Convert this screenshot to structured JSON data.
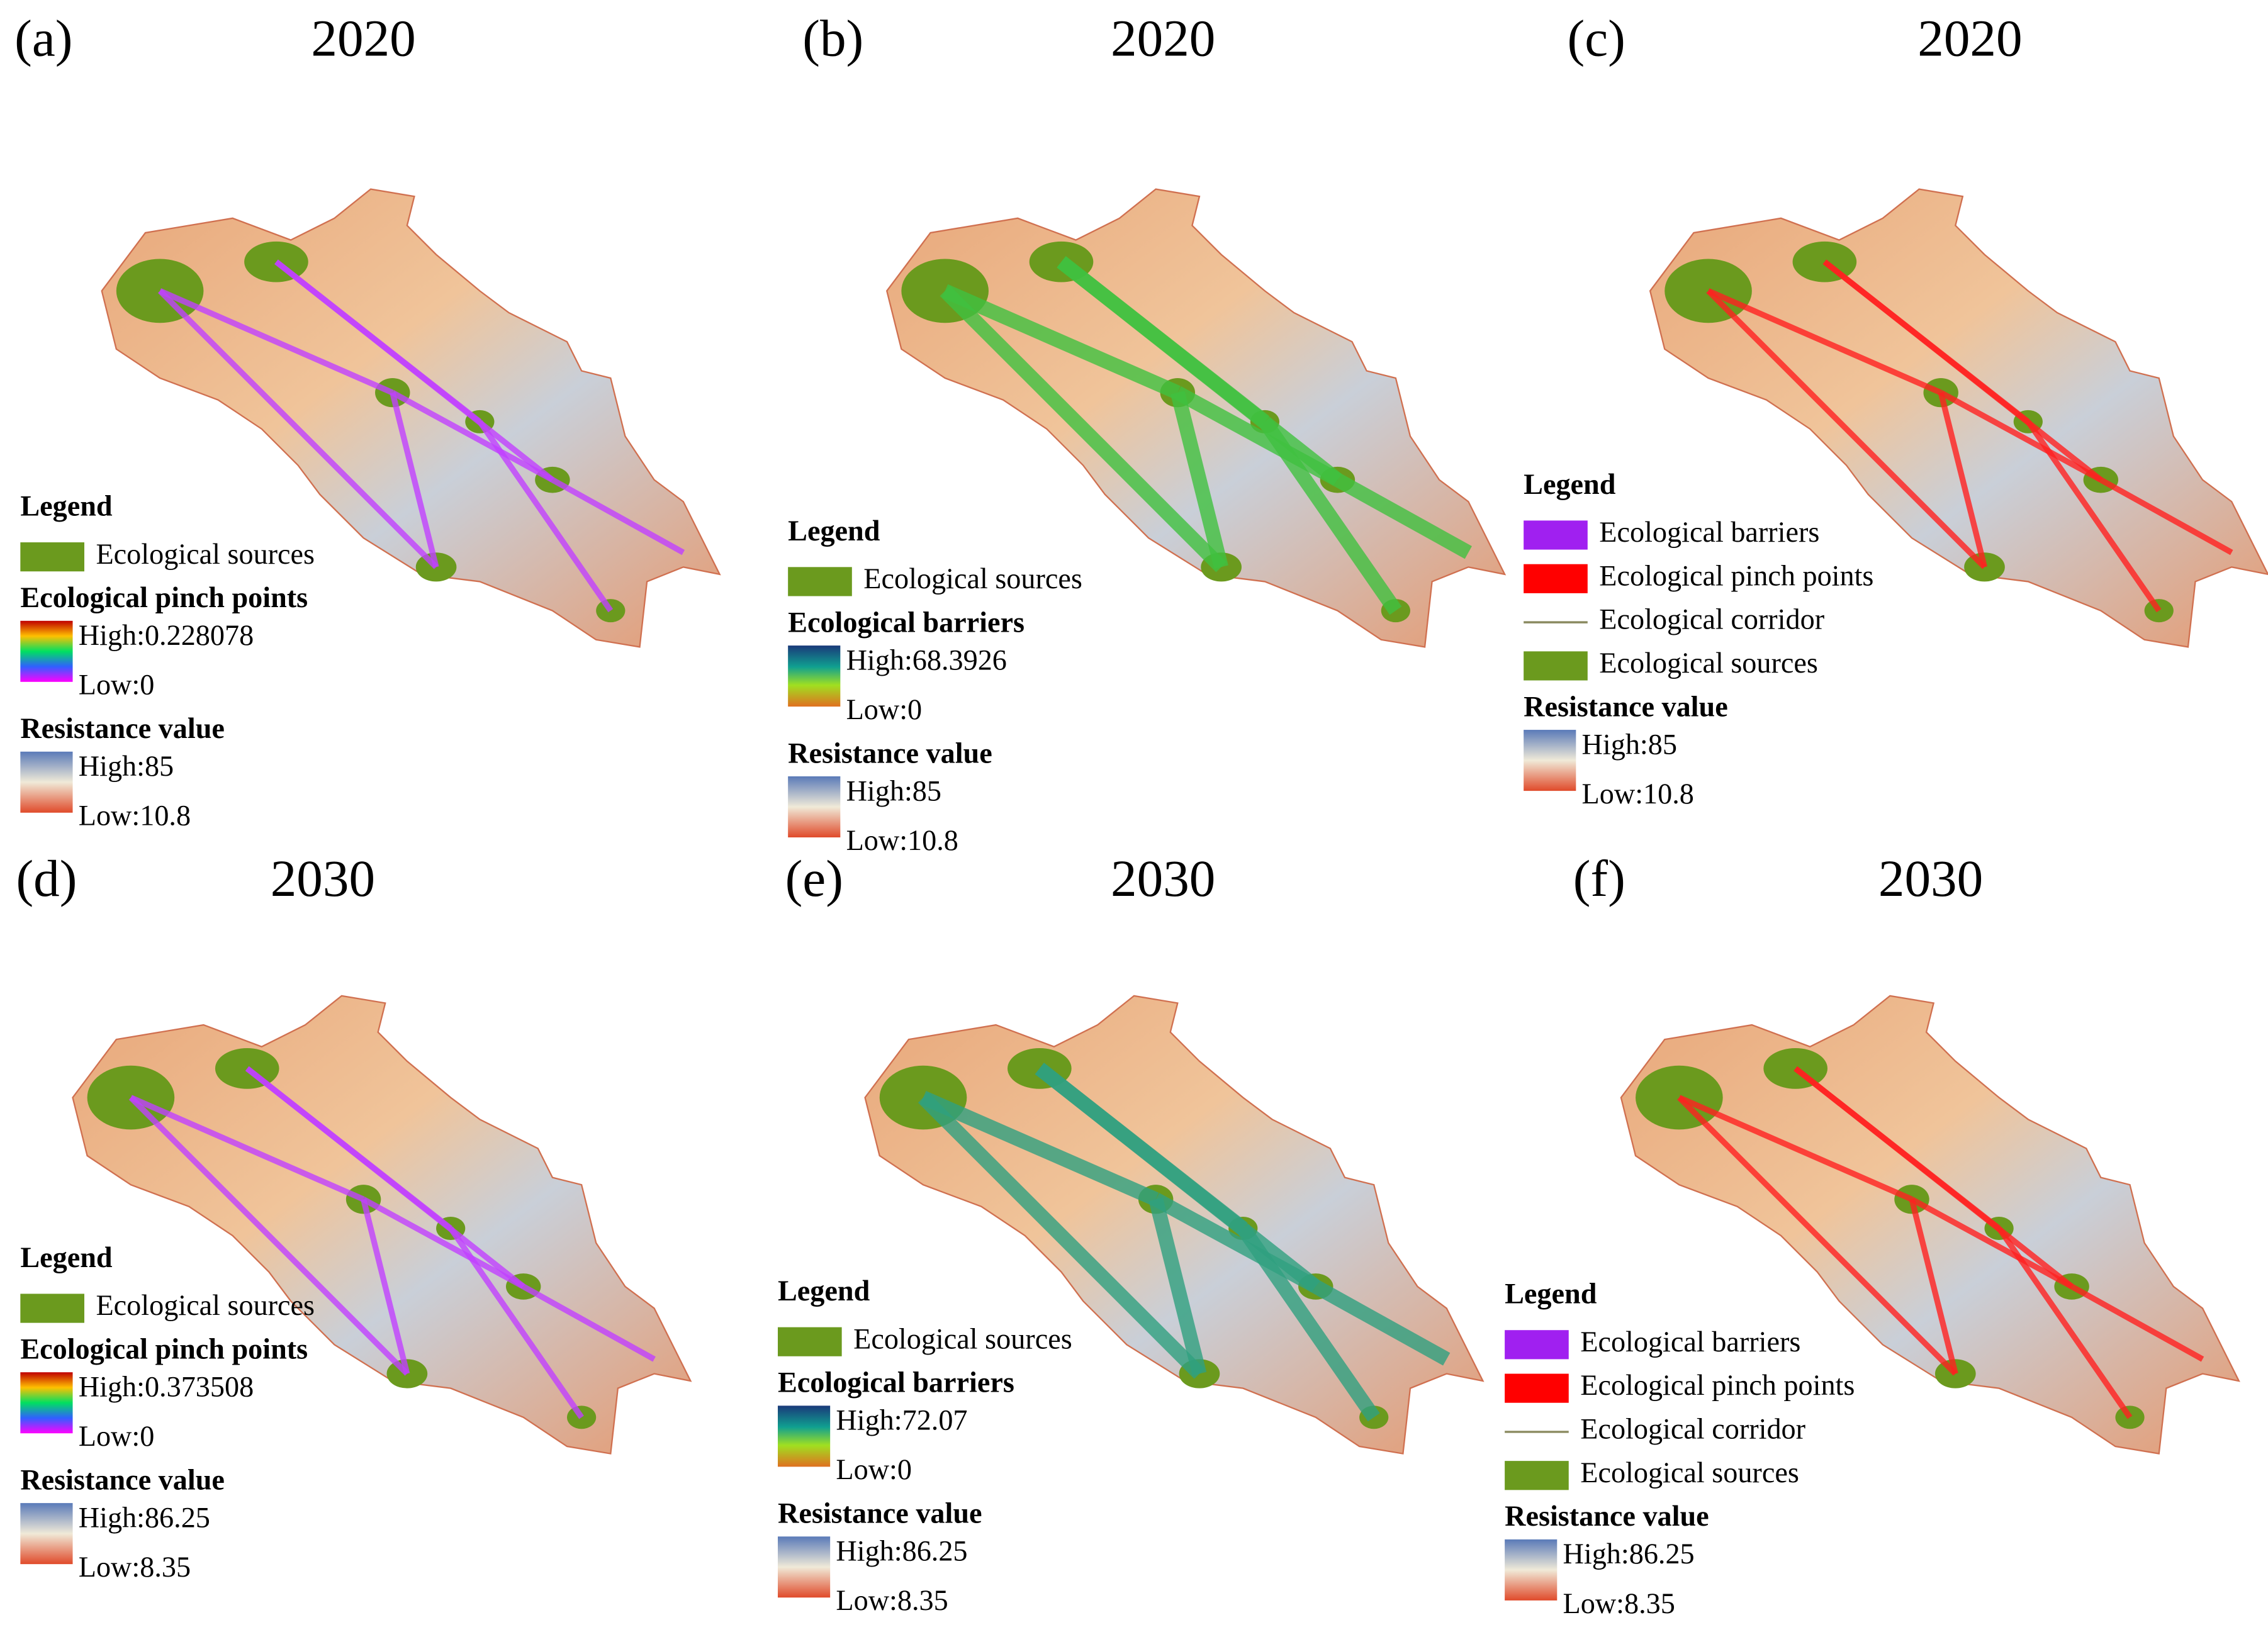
{
  "panels": [
    {
      "label": "(a)",
      "year": "2020",
      "legend_title": "Legend",
      "items": [
        {
          "label": "Ecological sources"
        }
      ],
      "ramps": [
        {
          "title": "Ecological pinch points",
          "high": "High:0.228078",
          "low": "Low:0"
        },
        {
          "title": "Resistance value",
          "high": "High:85",
          "low": "Low:10.8"
        }
      ]
    },
    {
      "label": "(b)",
      "year": "2020",
      "legend_title": "Legend",
      "items": [
        {
          "label": "Ecological sources"
        }
      ],
      "ramps": [
        {
          "title": "Ecological barriers",
          "high": "High:68.3926",
          "low": "Low:0"
        },
        {
          "title": "Resistance value",
          "high": "High:85",
          "low": "Low:10.8"
        }
      ]
    },
    {
      "label": "(c)",
      "year": "2020",
      "legend_title": "Legend",
      "items": [
        {
          "label": "Ecological barriers"
        },
        {
          "label": "Ecological pinch points"
        },
        {
          "label": "Ecological corridor"
        },
        {
          "label": "Ecological sources"
        }
      ],
      "ramps": [
        {
          "title": "Resistance value",
          "high": "High:85",
          "low": "Low:10.8"
        }
      ]
    },
    {
      "label": "(d)",
      "year": "2030",
      "legend_title": "Legend",
      "items": [
        {
          "label": "Ecological sources"
        }
      ],
      "ramps": [
        {
          "title": "Ecological pinch points",
          "high": "High:0.373508",
          "low": "Low:0"
        },
        {
          "title": "Resistance value",
          "high": "High:86.25",
          "low": "Low:8.35"
        }
      ]
    },
    {
      "label": "(e)",
      "year": "2030",
      "legend_title": "Legend",
      "items": [
        {
          "label": "Ecological sources"
        }
      ],
      "ramps": [
        {
          "title": "Ecological barriers",
          "high": "High:72.07",
          "low": "Low:0"
        },
        {
          "title": "Resistance value",
          "high": "High:86.25",
          "low": "Low:8.35"
        }
      ]
    },
    {
      "label": "(f)",
      "year": "2030",
      "legend_title": "Legend",
      "items": [
        {
          "label": "Ecological barriers"
        },
        {
          "label": "Ecological pinch points"
        },
        {
          "label": "Ecological corridor"
        },
        {
          "label": "Ecological sources"
        }
      ],
      "ramps": [
        {
          "title": "Resistance value",
          "high": "High:86.25",
          "low": "Low:8.35"
        }
      ]
    }
  ]
}
